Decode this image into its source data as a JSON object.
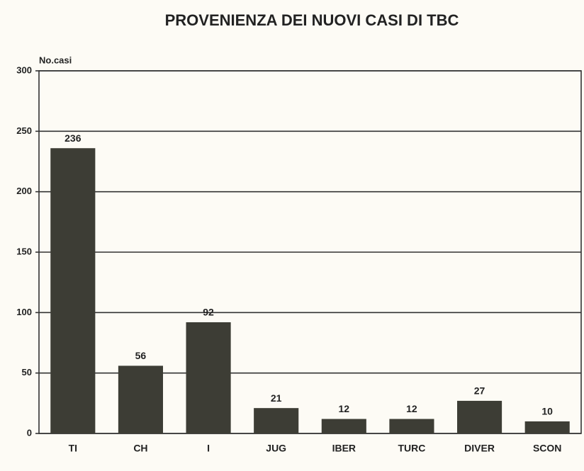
{
  "chart_data": {
    "type": "bar",
    "title": "PROVENIENZA DEI NUOVI CASI DI TBC",
    "y_axis_label": "No.casi",
    "categories": [
      "TI",
      "CH",
      "I",
      "JUG",
      "IBER",
      "TURC",
      "DIVER",
      "SCON"
    ],
    "values": [
      236,
      56,
      92,
      21,
      12,
      12,
      27,
      10
    ],
    "color": "#3d3d35",
    "ylim": [
      0,
      300
    ],
    "yticks": [
      0,
      50,
      100,
      150,
      200,
      250,
      300
    ],
    "grid": true
  }
}
